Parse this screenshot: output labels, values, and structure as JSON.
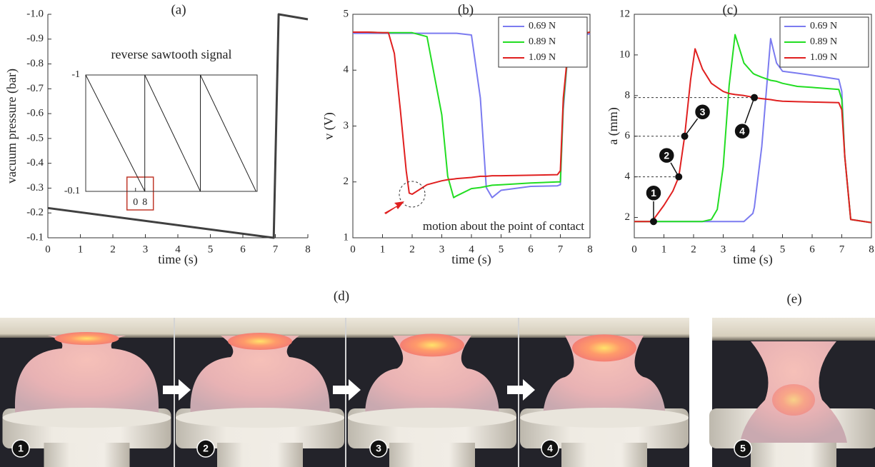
{
  "chart_data": [
    {
      "type": "line",
      "title": "(a)",
      "xlabel": "time (s)",
      "ylabel": "vacuum pressure (bar)",
      "x": [
        0,
        6.95,
        7.1,
        8
      ],
      "values": [
        -0.22,
        -0.1,
        -1.0,
        -0.98
      ],
      "color": "#404040",
      "xlim": [
        0,
        8
      ],
      "xticks": [
        0,
        1,
        2,
        3,
        4,
        5,
        6,
        7,
        8
      ],
      "ylim": [
        -0.1,
        -1.0
      ],
      "yticks": [
        -0.1,
        -0.2,
        -0.3,
        -0.4,
        -0.5,
        -0.6,
        -0.7,
        -0.8,
        -0.9,
        {
          "value": -1.0,
          "label": "-1.0"
        }
      ]
    },
    {
      "type": "line",
      "title": "reverse sawtooth signal",
      "x": [
        -43,
        8,
        8,
        56,
        56,
        104
      ],
      "values": [
        -1,
        -0.1,
        -1,
        -0.1,
        -1,
        -0.1
      ],
      "color": "#222222",
      "xlim": [
        -43,
        105
      ],
      "xticks": [
        0,
        8
      ],
      "ylim": [
        -0.1,
        -1
      ],
      "yticks": [
        -0.1,
        -1
      ],
      "highlight_color": "#c0392b"
    },
    {
      "type": "line",
      "title": "(b)",
      "xlabel": "time (s)",
      "ylabel": "v (V)",
      "annotation": "motion about the point of contact",
      "x": [
        0,
        0.5,
        1,
        1.2,
        1.4,
        1.6,
        1.8,
        1.9,
        2,
        2.5,
        3,
        3.2,
        3.4,
        3.5,
        4,
        4.3,
        4.5,
        4.7,
        5,
        6,
        6.9,
        7,
        7.1,
        7.3,
        8
      ],
      "series": [
        {
          "name": "0.69 N",
          "color": "#7b7bf0",
          "values": [
            4.66,
            4.66,
            4.66,
            4.66,
            4.66,
            4.66,
            4.66,
            4.66,
            4.66,
            4.66,
            4.66,
            4.66,
            4.66,
            4.66,
            4.63,
            3.5,
            1.9,
            1.72,
            1.85,
            1.92,
            1.93,
            1.95,
            3.3,
            4.6,
            4.65
          ]
        },
        {
          "name": "0.89 N",
          "color": "#22dd22",
          "values": [
            4.68,
            4.68,
            4.67,
            4.67,
            4.67,
            4.67,
            4.67,
            4.67,
            4.67,
            4.6,
            3.2,
            2.1,
            1.72,
            1.75,
            1.88,
            1.9,
            1.92,
            1.94,
            1.95,
            1.98,
            2.0,
            2.0,
            3.4,
            4.6,
            4.68
          ]
        },
        {
          "name": "1.09 N",
          "color": "#e02020",
          "values": [
            4.68,
            4.68,
            4.67,
            4.67,
            4.3,
            3.3,
            2.2,
            1.8,
            1.78,
            1.95,
            2.02,
            2.04,
            2.05,
            2.06,
            2.08,
            2.1,
            2.1,
            2.11,
            2.11,
            2.12,
            2.13,
            2.2,
            3.5,
            4.6,
            4.68
          ]
        }
      ],
      "xlim": [
        0,
        8
      ],
      "xticks": [
        0,
        1,
        2,
        3,
        4,
        5,
        6,
        7,
        8
      ],
      "ylim": [
        1,
        5
      ],
      "yticks": [
        1,
        2,
        3,
        4,
        5
      ],
      "legend": "upper right"
    },
    {
      "type": "line",
      "title": "(c)",
      "xlabel": "time (s)",
      "ylabel": "a (mm)",
      "x": [
        0,
        0.6,
        1,
        1.3,
        1.5,
        1.7,
        1.9,
        2.05,
        2.3,
        2.6,
        2.8,
        3,
        3.2,
        3.4,
        3.7,
        4,
        4.05,
        4.3,
        4.6,
        4.8,
        5,
        5.5,
        6,
        6.9,
        7,
        7.1,
        7.3,
        8
      ],
      "series": [
        {
          "name": "0.69 N",
          "color": "#7b7bf0",
          "values": [
            1.8,
            1.8,
            1.8,
            1.8,
            1.8,
            1.8,
            1.8,
            1.8,
            1.8,
            1.8,
            1.8,
            1.8,
            1.8,
            1.8,
            1.8,
            2.2,
            2.5,
            5.5,
            10.8,
            9.6,
            9.2,
            9.1,
            9.0,
            8.8,
            8.2,
            5,
            1.9,
            1.75
          ]
        },
        {
          "name": "0.89 N",
          "color": "#22dd22",
          "values": [
            1.8,
            1.8,
            1.8,
            1.8,
            1.8,
            1.8,
            1.8,
            1.8,
            1.8,
            1.9,
            2.4,
            4.5,
            8.5,
            11,
            9.6,
            9.1,
            9.05,
            8.9,
            8.75,
            8.7,
            8.6,
            8.45,
            8.4,
            8.3,
            7.8,
            5,
            1.9,
            1.75
          ]
        },
        {
          "name": "1.09 N",
          "color": "#e02020",
          "values": [
            1.8,
            1.8,
            2.6,
            3.3,
            4,
            6,
            8.8,
            10.3,
            9.3,
            8.6,
            8.4,
            8.2,
            8.1,
            8.05,
            8.0,
            7.92,
            7.9,
            7.85,
            7.8,
            7.75,
            7.72,
            7.7,
            7.68,
            7.65,
            7.3,
            5,
            1.9,
            1.75
          ]
        }
      ],
      "markers": [
        {
          "label": "1",
          "x": 0.65,
          "y": 1.8
        },
        {
          "label": "2",
          "x": 1.5,
          "y": 4
        },
        {
          "label": "3",
          "x": 1.7,
          "y": 6
        },
        {
          "label": "4",
          "x": 4.05,
          "y": 7.9
        }
      ],
      "xlim": [
        0,
        8
      ],
      "xticks": [
        0,
        1,
        2,
        3,
        4,
        5,
        6,
        7,
        8
      ],
      "ylim": [
        1,
        12
      ],
      "yticks": [
        2,
        4,
        6,
        8,
        10,
        12
      ],
      "legend": "upper right"
    }
  ],
  "photos": {
    "label": "(d)",
    "steps": [
      "1",
      "2",
      "3",
      "4"
    ]
  },
  "detail": {
    "label": "(e)",
    "step": "5"
  }
}
